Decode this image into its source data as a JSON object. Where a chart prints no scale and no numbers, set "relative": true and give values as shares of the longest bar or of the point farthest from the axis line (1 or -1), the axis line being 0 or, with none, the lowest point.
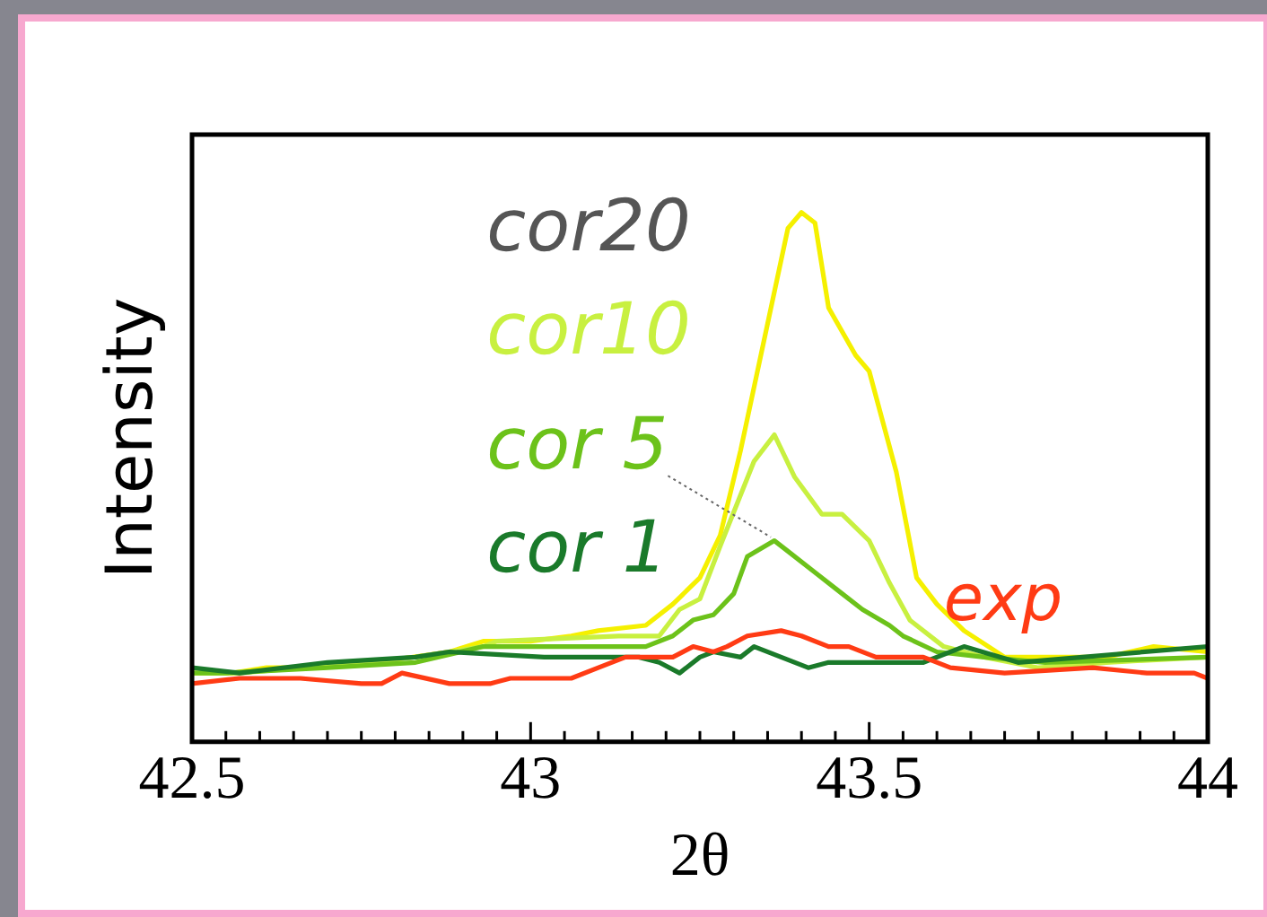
{
  "chart_data": {
    "type": "line",
    "xlabel": "2θ",
    "ylabel": "Intensity",
    "relative": true,
    "xlim": [
      42.5,
      44
    ],
    "xticks": [
      42.5,
      {
        "value": 42.55,
        "label": null
      },
      {
        "value": 42.6,
        "label": null
      },
      {
        "value": 42.65,
        "label": null
      },
      {
        "value": 42.7,
        "label": null
      },
      {
        "value": 42.75,
        "label": null
      },
      {
        "value": 42.8,
        "label": null
      },
      {
        "value": 42.85,
        "label": null
      },
      {
        "value": 42.9,
        "label": null
      },
      {
        "value": 42.95,
        "label": null
      },
      43,
      {
        "value": 43.05,
        "label": null
      },
      {
        "value": 43.1,
        "label": null
      },
      {
        "value": 43.15,
        "label": null
      },
      {
        "value": 43.2,
        "label": null
      },
      {
        "value": 43.25,
        "label": null
      },
      {
        "value": 43.3,
        "label": null
      },
      {
        "value": 43.35,
        "label": null
      },
      {
        "value": 43.4,
        "label": null
      },
      {
        "value": 43.45,
        "label": null
      },
      43.5,
      {
        "value": 43.55,
        "label": null
      },
      {
        "value": 43.6,
        "label": null
      },
      {
        "value": 43.65,
        "label": null
      },
      {
        "value": 43.7,
        "label": null
      },
      {
        "value": 43.75,
        "label": null
      },
      {
        "value": 43.8,
        "label": null
      },
      {
        "value": 43.85,
        "label": null
      },
      {
        "value": 43.9,
        "label": null
      },
      {
        "value": 43.95,
        "label": null
      },
      44
    ],
    "marker": "none",
    "line_style": "solid",
    "series": [
      {
        "name": "exp",
        "color": "#ff3b14",
        "x": [
          42.5,
          42.57,
          42.66,
          42.75,
          42.78,
          42.81,
          42.88,
          42.94,
          42.97,
          43.01,
          43.06,
          43.1,
          43.14,
          43.21,
          43.24,
          43.27,
          43.29,
          43.32,
          43.37,
          43.4,
          43.44,
          43.47,
          43.51,
          43.58,
          43.62,
          43.7,
          43.83,
          43.91,
          43.98,
          44
        ],
        "values": [
          0.11,
          0.12,
          0.12,
          0.11,
          0.11,
          0.13,
          0.11,
          0.11,
          0.12,
          0.12,
          0.12,
          0.14,
          0.16,
          0.16,
          0.18,
          0.17,
          0.18,
          0.2,
          0.21,
          0.2,
          0.18,
          0.18,
          0.16,
          0.16,
          0.14,
          0.13,
          0.14,
          0.13,
          0.13,
          0.12
        ]
      },
      {
        "name": "cor 1",
        "color": "#1a7a2a",
        "x": [
          42.5,
          42.57,
          42.7,
          42.83,
          42.88,
          43.02,
          43.11,
          43.16,
          43.19,
          43.22,
          43.25,
          43.27,
          43.31,
          43.33,
          43.37,
          43.41,
          43.44,
          43.58,
          43.64,
          43.72,
          44
        ],
        "values": [
          0.14,
          0.13,
          0.15,
          0.16,
          0.17,
          0.16,
          0.16,
          0.16,
          0.15,
          0.13,
          0.16,
          0.17,
          0.16,
          0.18,
          0.16,
          0.14,
          0.15,
          0.15,
          0.18,
          0.15,
          0.18
        ]
      },
      {
        "name": "cor 5",
        "color": "#6cc21a",
        "x": [
          42.5,
          42.55,
          42.7,
          42.83,
          42.93,
          43.1,
          43.17,
          43.21,
          43.24,
          43.27,
          43.3,
          43.32,
          43.36,
          43.38,
          43.42,
          43.46,
          43.49,
          43.53,
          43.55,
          43.6,
          43.67,
          43.76,
          44
        ],
        "values": [
          0.13,
          0.13,
          0.14,
          0.15,
          0.18,
          0.18,
          0.18,
          0.2,
          0.23,
          0.24,
          0.28,
          0.35,
          0.38,
          0.36,
          0.32,
          0.28,
          0.25,
          0.22,
          0.2,
          0.17,
          0.16,
          0.15,
          0.16
        ]
      },
      {
        "name": "cor10",
        "color": "#c8f040",
        "x": [
          42.51,
          42.57,
          42.75,
          42.83,
          42.93,
          42.95,
          43.13,
          43.19,
          43.22,
          43.25,
          43.28,
          43.33,
          43.36,
          43.39,
          43.43,
          43.46,
          43.5,
          43.53,
          43.56,
          43.61,
          43.67,
          43.75,
          43.85,
          44
        ],
        "values": [
          0.13,
          0.13,
          0.15,
          0.16,
          0.18,
          0.19,
          0.2,
          0.2,
          0.25,
          0.27,
          0.37,
          0.53,
          0.58,
          0.5,
          0.43,
          0.43,
          0.38,
          0.3,
          0.23,
          0.18,
          0.16,
          0.14,
          0.15,
          0.16
        ]
      },
      {
        "name": "cor20",
        "color": "#f5f000",
        "x": [
          42.5,
          42.56,
          42.61,
          42.69,
          42.77,
          42.88,
          42.93,
          43,
          43.06,
          43.1,
          43.17,
          43.21,
          43.25,
          43.28,
          43.31,
          43.34,
          43.38,
          43.4,
          43.42,
          43.44,
          43.48,
          43.5,
          43.54,
          43.57,
          43.6,
          43.64,
          43.7,
          43.85,
          43.92,
          44
        ],
        "values": [
          0.13,
          0.13,
          0.14,
          0.14,
          0.15,
          0.17,
          0.19,
          0.19,
          0.2,
          0.21,
          0.22,
          0.26,
          0.31,
          0.39,
          0.55,
          0.73,
          0.97,
          1,
          0.98,
          0.82,
          0.73,
          0.7,
          0.51,
          0.31,
          0.26,
          0.21,
          0.16,
          0.16,
          0.18,
          0.17
        ]
      }
    ]
  }
}
